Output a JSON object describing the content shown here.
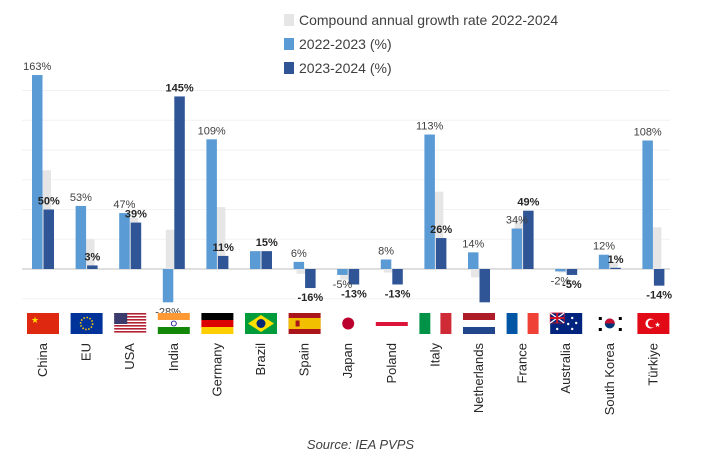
{
  "chart_data": {
    "type": "bar",
    "categories": [
      "China",
      "EU",
      "USA",
      "India",
      "Germany",
      "Brazil",
      "Spain",
      "Japan",
      "Poland",
      "Italy",
      "Netherlands",
      "France",
      "Australia",
      "South Korea",
      "Türkiye"
    ],
    "series": [
      {
        "name": "Compound annual growth rate  2022-2024",
        "color": "#e6e6e6",
        "values": [
          83,
          25,
          43,
          33,
          52,
          15,
          -4,
          -9,
          -3,
          65,
          -7,
          42,
          -3,
          6,
          35
        ]
      },
      {
        "name": "2022-2023 (%)",
        "color": "#5b9bd5",
        "values": [
          163,
          53,
          47,
          -28,
          109,
          15,
          6,
          -5,
          8,
          113,
          14,
          34,
          -2,
          12,
          108
        ],
        "labels": [
          "163%",
          "53%",
          "47%",
          "-28%",
          "109%",
          "",
          "6%",
          "-5%",
          "8%",
          "113%",
          "14%",
          "34%",
          "-2%",
          "12%",
          "108%"
        ]
      },
      {
        "name": "2023-2024 (%)",
        "color": "#2f5597",
        "values": [
          50,
          3,
          39,
          145,
          11,
          15,
          -16,
          -13,
          -13,
          26,
          -28,
          49,
          -5,
          1,
          -14
        ],
        "labels": [
          "50%",
          "3%",
          "39%",
          "145%",
          "11%",
          "15%",
          "-16%",
          "-13%",
          "-13%",
          "26%",
          "",
          "49%",
          "-5%",
          "1%",
          "-14%"
        ]
      }
    ],
    "legend_position": "top-right",
    "source": "Source: IEA PVPS"
  },
  "flags": [
    "china-flag",
    "eu-flag",
    "usa-flag",
    "india-flag",
    "germany-flag",
    "brazil-flag",
    "spain-flag",
    "japan-flag",
    "poland-flag",
    "italy-flag",
    "netherlands-flag",
    "france-flag",
    "australia-flag",
    "south-korea-flag",
    "turkiye-flag"
  ]
}
